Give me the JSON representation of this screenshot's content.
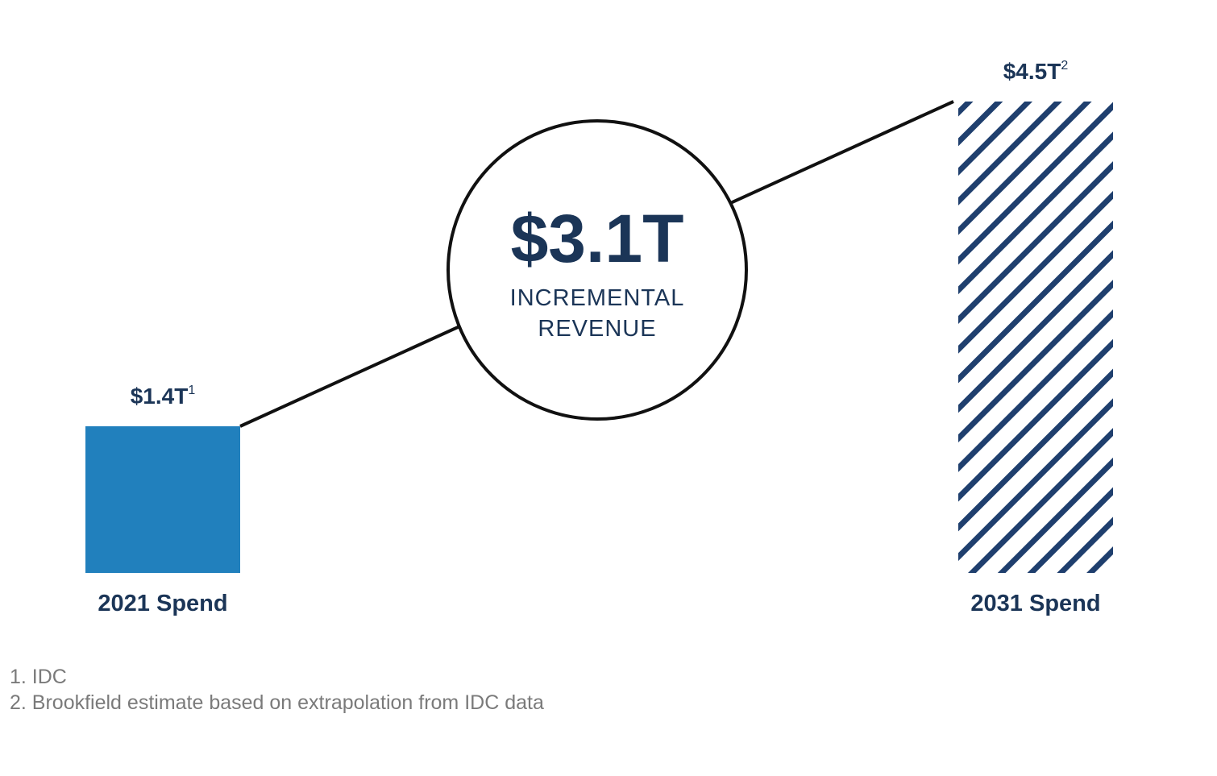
{
  "chart_data": {
    "type": "bar",
    "categories": [
      "2021 Spend",
      "2031 Spend"
    ],
    "values": [
      1.4,
      4.5
    ],
    "value_labels": [
      "$1.4T",
      "$4.5T"
    ],
    "value_label_superscripts": [
      "1",
      "2"
    ],
    "bar_styles": [
      "solid",
      "hatched"
    ],
    "ylim": [
      0,
      4.5
    ],
    "grid": false,
    "annotation": {
      "value": "$3.1T",
      "label_line1": "INCREMENTAL",
      "label_line2": "REVENUE"
    }
  },
  "footnotes": [
    "1. IDC",
    "2. Brookfield estimate based on extrapolation from IDC data"
  ],
  "colors": {
    "solid_bar": "#2180bd",
    "hatch": "#1f3f6e",
    "text_dark": "#1b3557",
    "line": "#111111",
    "footnote": "#7a7a7a"
  }
}
